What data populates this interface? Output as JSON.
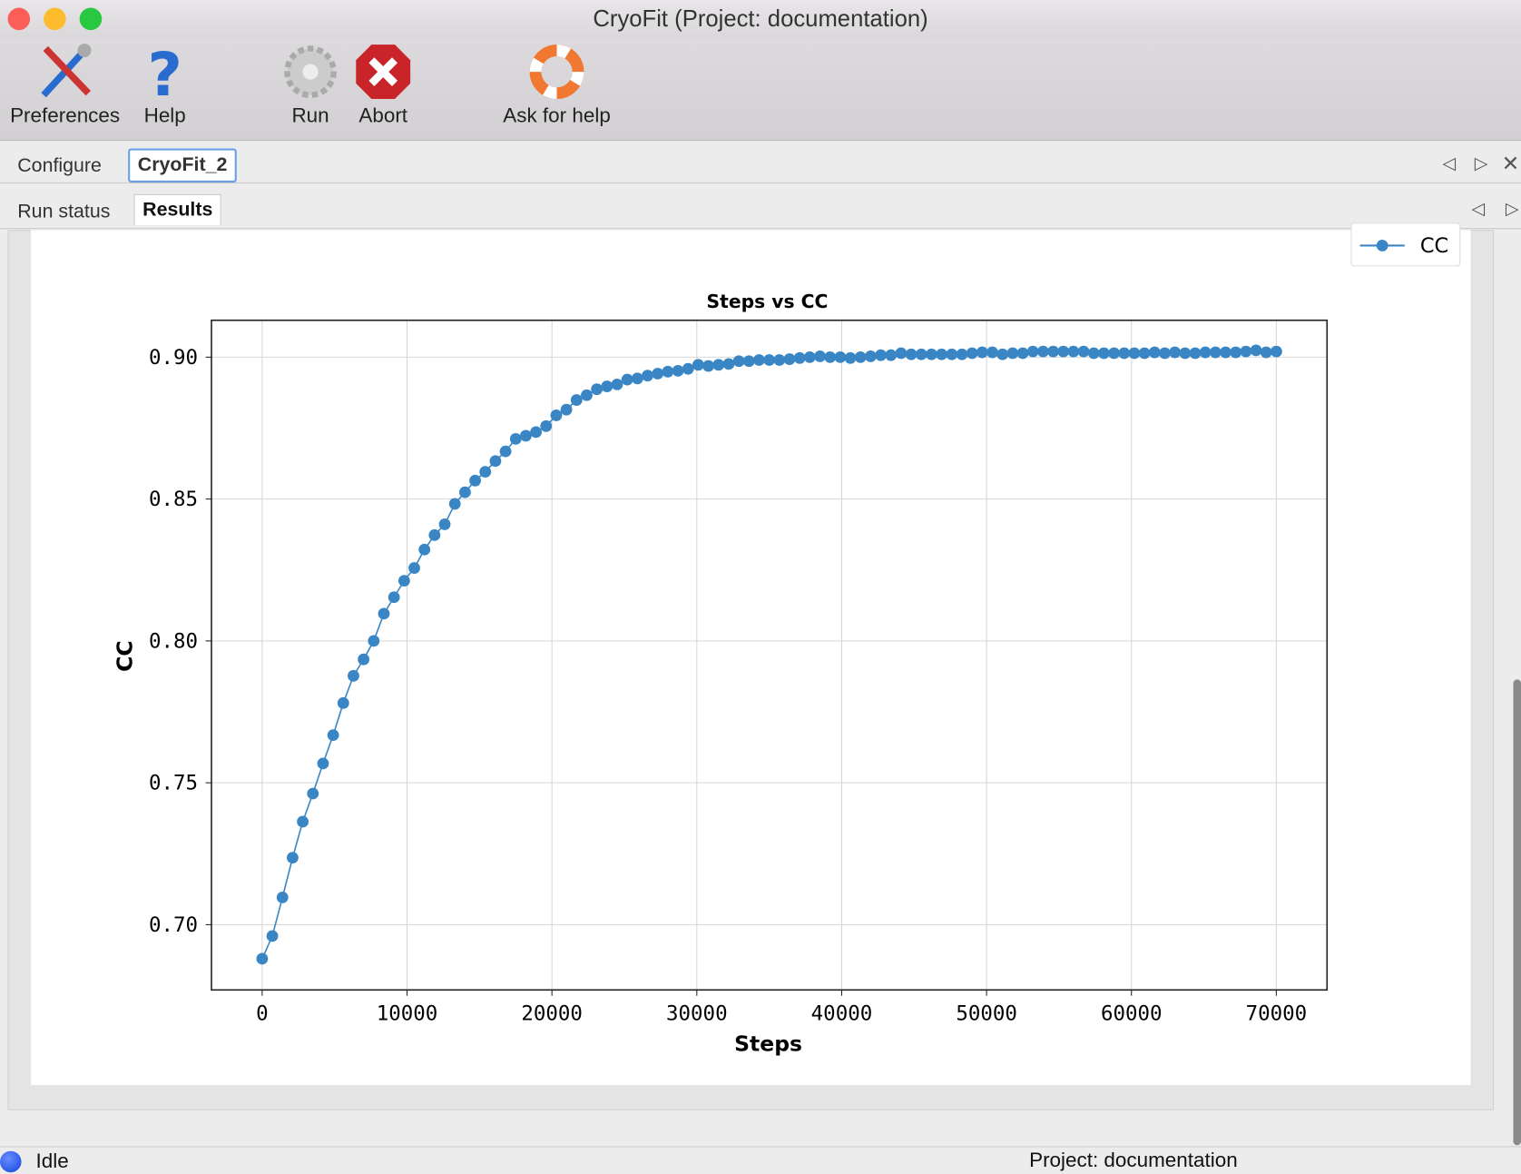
{
  "window": {
    "title": "CryoFit (Project: documentation)"
  },
  "toolbar": {
    "preferences": "Preferences",
    "help": "Help",
    "run": "Run",
    "abort": "Abort",
    "ask_for_help": "Ask for help"
  },
  "tabs_top": {
    "configure": "Configure",
    "cryofit": "CryoFit_2"
  },
  "tabs_sub": {
    "run_status": "Run status",
    "results": "Results"
  },
  "status": {
    "state": "Idle",
    "project": "Project: documentation",
    "indicator_color": "#1144dd"
  },
  "chart_data": {
    "type": "line",
    "title": "Steps vs CC",
    "xlabel": "Steps",
    "ylabel": "CC",
    "xlim": [
      -3500,
      73500
    ],
    "ylim": [
      0.677,
      0.913
    ],
    "xticks": [
      "0",
      "10000",
      "20000",
      "30000",
      "40000",
      "50000",
      "60000",
      "70000"
    ],
    "yticks": [
      "0.70",
      "0.75",
      "0.80",
      "0.85",
      "0.90"
    ],
    "grid": true,
    "legend": "top-right",
    "color": "#3a86c4",
    "series": [
      {
        "name": "CC",
        "x": [
          0,
          700,
          1400,
          2100,
          2800,
          3500,
          4200,
          4900,
          5600,
          6300,
          7000,
          7700,
          8400,
          9100,
          9800,
          10500,
          11200,
          11900,
          12600,
          13300,
          14000,
          14700,
          15400,
          16100,
          16800,
          17500,
          18200,
          18900,
          19600,
          20300,
          21000,
          21700,
          22400,
          23100,
          23800,
          24500,
          25200,
          25900,
          26600,
          27300,
          28000,
          28700,
          29400,
          30100,
          30800,
          31500,
          32200,
          32900,
          33600,
          34300,
          35000,
          35700,
          36400,
          37100,
          37800,
          38500,
          39200,
          39900,
          40600,
          41300,
          42000,
          42700,
          43400,
          44100,
          44800,
          45500,
          46200,
          46900,
          47600,
          48300,
          49000,
          49700,
          50400,
          51100,
          51800,
          52500,
          53200,
          53900,
          54600,
          55300,
          56000,
          56700,
          57400,
          58100,
          58800,
          59500,
          60200,
          60900,
          61600,
          62300,
          63000,
          63700,
          64400,
          65100,
          65800,
          66500,
          67200,
          67900,
          68600,
          69300,
          70000
        ],
        "y": [
          0.688,
          0.696,
          0.7096,
          0.7236,
          0.7363,
          0.7462,
          0.7568,
          0.7668,
          0.7781,
          0.7877,
          0.7935,
          0.8,
          0.8096,
          0.8154,
          0.8212,
          0.8257,
          0.8322,
          0.8373,
          0.8411,
          0.8483,
          0.8524,
          0.8565,
          0.8596,
          0.8634,
          0.8668,
          0.8712,
          0.8723,
          0.8736,
          0.8757,
          0.8795,
          0.8815,
          0.8849,
          0.8866,
          0.8887,
          0.8897,
          0.8904,
          0.8921,
          0.8925,
          0.8935,
          0.8942,
          0.8949,
          0.8952,
          0.8959,
          0.8973,
          0.8969,
          0.8973,
          0.8976,
          0.8986,
          0.8986,
          0.899,
          0.899,
          0.899,
          0.8993,
          0.8997,
          0.9,
          0.9003,
          0.9,
          0.9,
          0.8997,
          0.9,
          0.9003,
          0.9007,
          0.9007,
          0.9014,
          0.901,
          0.901,
          0.901,
          0.901,
          0.901,
          0.901,
          0.9014,
          0.9017,
          0.9017,
          0.901,
          0.9014,
          0.9014,
          0.902,
          0.902,
          0.902,
          0.902,
          0.902,
          0.902,
          0.9014,
          0.9014,
          0.9014,
          0.9014,
          0.9014,
          0.9014,
          0.9017,
          0.9014,
          0.9017,
          0.9014,
          0.9014,
          0.9017,
          0.9017,
          0.9017,
          0.9017,
          0.902,
          0.9024,
          0.9017,
          0.902
        ]
      }
    ]
  }
}
